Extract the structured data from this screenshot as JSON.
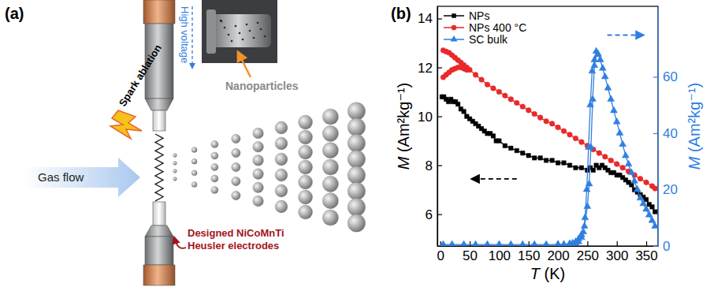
{
  "diagram": {
    "panel": "(a)",
    "labels": {
      "high_voltage": "High voltage",
      "photo_caption": "Nanoparticles",
      "spark": "Spark ablation",
      "gas": "Gas flow",
      "electrodes": "Designed NiCoMnTi Heusler electrodes"
    }
  },
  "chart_data": {
    "type": "line",
    "panel": "(b)",
    "xlabel": "T (K)",
    "ylabel": "M (Am²kg⁻¹)",
    "y2label": "M (Am²kg⁻¹)",
    "xlim": [
      -5,
      370
    ],
    "xticks": [
      0,
      50,
      100,
      150,
      200,
      250,
      300,
      350
    ],
    "ylim": [
      4.7,
      14.5
    ],
    "yticks": [
      6,
      8,
      10,
      12,
      14
    ],
    "y2lim": [
      0,
      85
    ],
    "y2ticks": [
      0,
      20,
      40,
      60
    ],
    "legend": "upper left",
    "grid": false,
    "series": [
      {
        "name": "NPs",
        "color": "#000000",
        "marker": "square",
        "x": [
          3,
          6,
          10,
          14,
          18,
          22,
          26,
          30,
          35,
          40,
          45,
          50,
          55,
          60,
          65,
          70,
          75,
          80,
          85,
          90,
          95,
          100,
          110,
          120,
          130,
          140,
          150,
          160,
          170,
          180,
          190,
          200,
          210,
          220,
          230,
          240,
          250,
          255,
          260,
          265,
          270,
          275,
          280,
          285,
          290,
          295,
          300,
          305,
          310,
          315,
          320,
          325,
          330,
          335,
          340,
          345,
          350,
          355,
          360,
          365
        ],
        "values": [
          10.8,
          10.8,
          10.7,
          10.6,
          10.7,
          10.6,
          10.6,
          10.5,
          10.3,
          10.2,
          10.0,
          9.9,
          9.8,
          9.7,
          9.6,
          9.5,
          9.4,
          9.3,
          9.3,
          9.2,
          9.0,
          9.0,
          8.8,
          8.7,
          8.6,
          8.5,
          8.4,
          8.3,
          8.3,
          8.2,
          8.2,
          8.1,
          8.1,
          8.0,
          7.9,
          7.9,
          7.8,
          7.9,
          7.8,
          8.0,
          7.9,
          8.0,
          7.9,
          7.8,
          7.7,
          7.7,
          7.6,
          7.6,
          7.5,
          7.4,
          7.3,
          7.2,
          7.0,
          6.9,
          6.8,
          6.7,
          6.6,
          6.4,
          6.3,
          6.1
        ]
      },
      {
        "name": "NPs 400 °C",
        "color": "#e8292b",
        "marker": "circle",
        "x": [
          5,
          10,
          15,
          20,
          25,
          30,
          35,
          40,
          45,
          50,
          60,
          70,
          80,
          90,
          100,
          110,
          120,
          130,
          140,
          150,
          160,
          170,
          180,
          190,
          200,
          210,
          220,
          230,
          240,
          250,
          260,
          270,
          280,
          290,
          300,
          310,
          320,
          330,
          340,
          350,
          360,
          365,
          null,
          5,
          10,
          15,
          20,
          25,
          30,
          35,
          40,
          45
        ],
        "values": [
          12.7,
          12.65,
          12.6,
          12.5,
          12.4,
          12.3,
          12.2,
          12.1,
          12.0,
          11.9,
          11.7,
          11.5,
          11.3,
          11.15,
          11.0,
          10.85,
          10.7,
          10.55,
          10.4,
          10.25,
          10.1,
          9.95,
          9.8,
          9.7,
          9.55,
          9.4,
          9.25,
          9.1,
          8.95,
          8.8,
          8.65,
          8.5,
          8.35,
          8.2,
          8.05,
          7.9,
          7.75,
          7.6,
          7.45,
          7.3,
          7.15,
          7.05,
          null,
          11.6,
          11.7,
          11.8,
          11.9,
          11.95,
          12.0,
          12.0,
          11.95,
          11.9
        ]
      },
      {
        "name": "SC bulk",
        "color": "#2f7fe0",
        "marker": "triangle",
        "axis": "y2",
        "x": [
          5,
          20,
          40,
          60,
          80,
          100,
          120,
          140,
          160,
          180,
          200,
          210,
          220,
          225,
          230,
          235,
          240,
          245,
          250,
          253,
          256,
          259,
          262,
          265,
          268,
          272,
          276,
          280,
          285,
          290,
          295,
          300,
          305,
          310,
          315,
          320,
          325,
          330,
          335,
          340,
          345,
          350,
          355,
          360,
          365,
          null,
          268,
          262,
          258,
          255,
          252,
          249,
          246,
          243,
          240,
          235,
          230,
          220,
          200
        ],
        "values": [
          0.5,
          0.5,
          0.5,
          0.5,
          0.5,
          0.5,
          0.5,
          0.5,
          0.5,
          0.5,
          0.5,
          0.6,
          0.8,
          1.0,
          1.5,
          2.5,
          4,
          7,
          14,
          22,
          35,
          52,
          64,
          69,
          68,
          66,
          63,
          60,
          56,
          52,
          48,
          44,
          40,
          36,
          32,
          29,
          26,
          23,
          20,
          17,
          15,
          13,
          11,
          9,
          7,
          null,
          68,
          66,
          62,
          50,
          35,
          20,
          10,
          5,
          3,
          1.5,
          1.0,
          0.7,
          0.5
        ]
      }
    ]
  }
}
